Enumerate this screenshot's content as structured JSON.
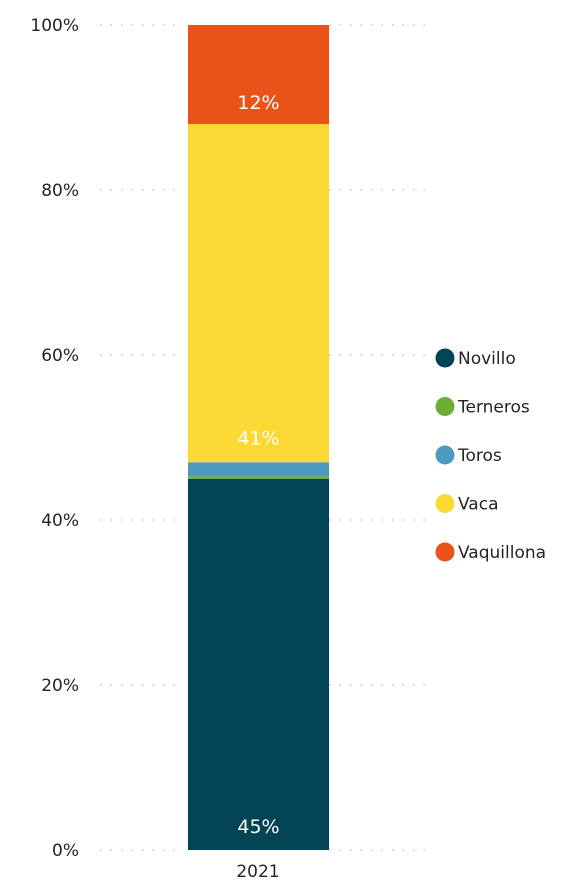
{
  "chart_data": {
    "type": "bar",
    "stacked": true,
    "normalized": true,
    "categories": [
      "2021"
    ],
    "series": [
      {
        "name": "Novillo",
        "values": [
          45
        ],
        "color": "#034454"
      },
      {
        "name": "Terneros",
        "values": [
          0.3
        ],
        "color": "#6CAE32"
      },
      {
        "name": "Toros",
        "values": [
          1.7
        ],
        "color": "#4C9BBE"
      },
      {
        "name": "Vaca",
        "values": [
          41
        ],
        "color": "#FCD835"
      },
      {
        "name": "Vaquillona",
        "values": [
          12
        ],
        "color": "#E9531A"
      }
    ],
    "data_labels": [
      {
        "series": "Novillo",
        "text": "45%"
      },
      {
        "series": "Vaca",
        "text": "41%"
      },
      {
        "series": "Vaquillona",
        "text": "12%"
      }
    ],
    "y_ticks": [
      "0%",
      "20%",
      "40%",
      "60%",
      "80%",
      "100%"
    ],
    "ylim": [
      0,
      100
    ],
    "grid": true,
    "legend": "right"
  }
}
